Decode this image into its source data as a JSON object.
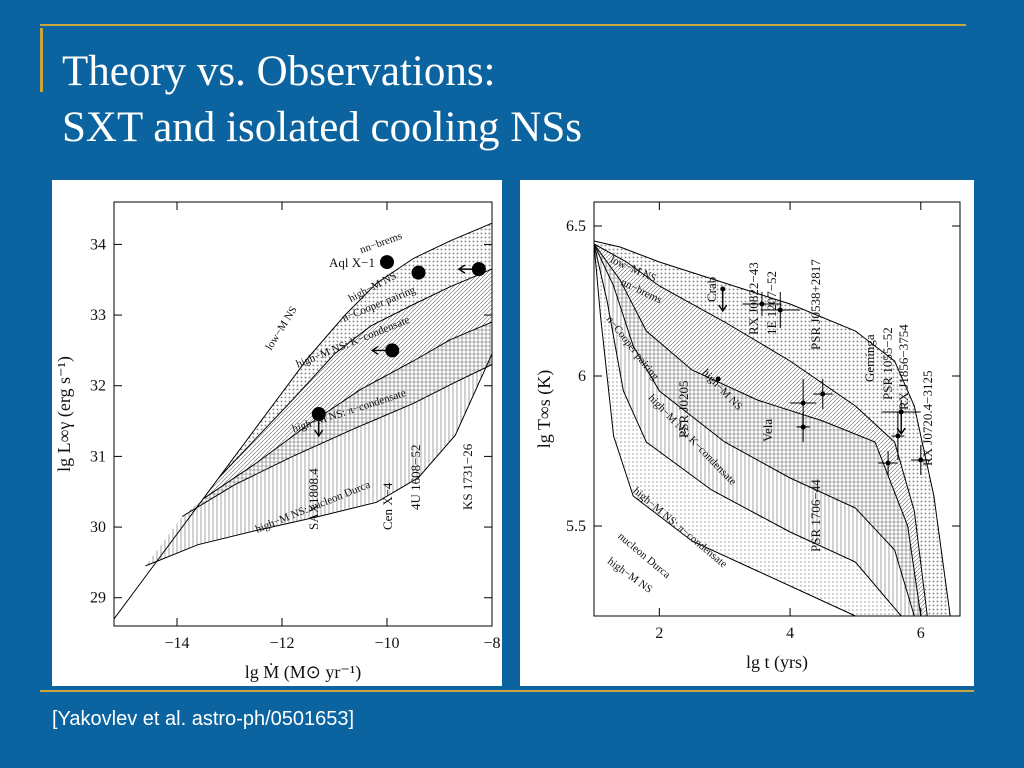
{
  "slide": {
    "title_line1": "Theory vs. Observations:",
    "title_line2": "SXT and isolated cooling NSs",
    "citation": "[Yakovlev et al. astro-ph/0501653]",
    "colors": {
      "background": "#0b64a0",
      "rule": "#c8a63c",
      "panel": "#ffffff"
    }
  },
  "chart_data": [
    {
      "type": "area",
      "xlabel": "lg Ṁ  (M⊙ yr⁻¹)",
      "ylabel": "lg L∞γ  (erg s⁻¹)",
      "xlim": [
        -15.2,
        -8
      ],
      "ylim": [
        28.6,
        34.6
      ],
      "xticks": [
        -14,
        -12,
        -10,
        -8
      ],
      "xtick_labels": [
        "−14",
        "−12",
        "−10",
        "−8"
      ],
      "yticks": [
        29,
        30,
        31,
        32,
        33,
        34
      ],
      "ytick_labels": [
        "29",
        "30",
        "31",
        "32",
        "33",
        "34"
      ],
      "curves": [
        {
          "name": "nn−brems",
          "points": [
            [
              -15.2,
              28.7
            ],
            [
              -14.5,
              29.4
            ],
            [
              -13.5,
              30.4
            ],
            [
              -12.5,
              31.4
            ],
            [
              -11.5,
              32.4
            ],
            [
              -10.8,
              33.0
            ],
            [
              -10.2,
              33.45
            ],
            [
              -9.5,
              33.8
            ],
            [
              -8.8,
              34.05
            ],
            [
              -8,
              34.3
            ]
          ]
        },
        {
          "name": "high−M NS: n−Cooper pairing",
          "points": [
            [
              -13.2,
              30.7
            ],
            [
              -12.5,
              31.25
            ],
            [
              -11.8,
              31.8
            ],
            [
              -11,
              32.45
            ],
            [
              -10.3,
              32.85
            ],
            [
              -9.5,
              33.15
            ],
            [
              -8.8,
              33.4
            ],
            [
              -8,
              33.65
            ]
          ]
        },
        {
          "name": "high−M NS: K−condensate",
          "points": [
            [
              -13.5,
              30.4
            ],
            [
              -12.5,
              30.9
            ],
            [
              -11.5,
              31.45
            ],
            [
              -10.5,
              31.95
            ],
            [
              -9.5,
              32.35
            ],
            [
              -8.8,
              32.65
            ],
            [
              -8,
              32.9
            ]
          ]
        },
        {
          "name": "high−M NS: π−condensate",
          "points": [
            [
              -13.9,
              30.15
            ],
            [
              -12.9,
              30.6
            ],
            [
              -11.8,
              31.0
            ],
            [
              -10.6,
              31.4
            ],
            [
              -9.5,
              31.75
            ],
            [
              -8.7,
              32.05
            ],
            [
              -8,
              32.3
            ]
          ]
        },
        {
          "name": "high−M NS: nucleon Durca",
          "points": [
            [
              -14.6,
              29.45
            ],
            [
              -13.6,
              29.75
            ],
            [
              -12.5,
              29.95
            ],
            [
              -11.3,
              30.15
            ],
            [
              -10.2,
              30.35
            ],
            [
              -9.4,
              30.7
            ],
            [
              -8.7,
              31.3
            ],
            [
              -8,
              32.45
            ]
          ]
        }
      ],
      "points": [
        {
          "label": "Aql X−1",
          "x": -10.0,
          "y": 33.75,
          "arrow": ""
        },
        {
          "label": "",
          "x": -9.4,
          "y": 33.6,
          "arrow": ""
        },
        {
          "label": "",
          "x": -8.25,
          "y": 33.65,
          "arrow": "left"
        },
        {
          "label": "",
          "x": -9.9,
          "y": 32.5,
          "arrow": "left"
        },
        {
          "label": "SAX1808.4",
          "x": -11.3,
          "y": 31.6,
          "arrow": "down"
        }
      ],
      "source_labels": [
        "SAX1808.4",
        "Cen X−4",
        "4U 1608−52",
        "KS 1731−26"
      ],
      "curve_labels": [
        "nn−brems",
        "low−M NS",
        "high−M NS",
        "n−Cooper pairing",
        "high−M NS: K−condensate",
        "high−M NS: π−condensate",
        "high−M NS: nucleon Durca"
      ]
    },
    {
      "type": "area",
      "xlabel": "lg t   (yrs)",
      "ylabel": "lg T∞s  (K)",
      "xlim": [
        1,
        6.6
      ],
      "ylim": [
        5.2,
        6.58
      ],
      "xticks": [
        2,
        4,
        6
      ],
      "xtick_labels": [
        "2",
        "4",
        "6"
      ],
      "yticks": [
        5.5,
        6,
        6.5
      ],
      "ytick_labels": [
        "5.5",
        "6",
        "6.5"
      ],
      "curves": [
        {
          "name": "low−M NS",
          "points": [
            [
              1,
              6.45
            ],
            [
              1.4,
              6.43
            ],
            [
              2,
              6.38
            ],
            [
              3,
              6.31
            ],
            [
              4,
              6.24
            ],
            [
              5,
              6.15
            ],
            [
              5.6,
              6.05
            ],
            [
              5.9,
              5.9
            ],
            [
              6.2,
              5.6
            ],
            [
              6.45,
              5.2
            ]
          ]
        },
        {
          "name": "nn−brems",
          "points": [
            [
              1,
              6.44
            ],
            [
              1.5,
              6.38
            ],
            [
              2,
              6.3
            ],
            [
              3,
              6.18
            ],
            [
              4,
              6.05
            ],
            [
              5,
              5.9
            ],
            [
              5.6,
              5.78
            ],
            [
              5.9,
              5.55
            ],
            [
              6.1,
              5.2
            ]
          ]
        },
        {
          "name": "n−Cooper pairing",
          "points": [
            [
              1,
              6.44
            ],
            [
              1.4,
              6.32
            ],
            [
              1.8,
              6.15
            ],
            [
              2.5,
              6.02
            ],
            [
              3.5,
              5.92
            ],
            [
              4.5,
              5.85
            ],
            [
              5.3,
              5.78
            ],
            [
              5.8,
              5.5
            ],
            [
              6.0,
              5.2
            ]
          ]
        },
        {
          "name": "high−M NS: K−condensate",
          "points": [
            [
              1,
              6.44
            ],
            [
              1.3,
              6.3
            ],
            [
              1.6,
              6.1
            ],
            [
              2,
              5.95
            ],
            [
              3,
              5.78
            ],
            [
              4,
              5.66
            ],
            [
              5,
              5.56
            ],
            [
              5.6,
              5.42
            ],
            [
              5.9,
              5.2
            ]
          ]
        },
        {
          "name": "high−M NS: π−condensate",
          "points": [
            [
              1,
              6.44
            ],
            [
              1.2,
              6.25
            ],
            [
              1.45,
              5.95
            ],
            [
              1.8,
              5.78
            ],
            [
              2.8,
              5.62
            ],
            [
              4,
              5.48
            ],
            [
              5,
              5.38
            ],
            [
              5.7,
              5.2
            ]
          ]
        },
        {
          "name": "high−M NS: nucleon Durca",
          "points": [
            [
              1,
              6.44
            ],
            [
              1.1,
              6.2
            ],
            [
              1.3,
              5.8
            ],
            [
              1.6,
              5.6
            ],
            [
              2.5,
              5.45
            ],
            [
              3.5,
              5.35
            ],
            [
              4.5,
              5.25
            ],
            [
              5,
              5.2
            ]
          ]
        }
      ],
      "points": [
        {
          "label": "Crab",
          "x": 2.97,
          "y": 6.29,
          "xerr": 0,
          "yerr": 0,
          "arrow": "down"
        },
        {
          "label": "RX J0822−43",
          "x": 3.57,
          "y": 6.24,
          "xerr": 0.3,
          "yerr": 0.04,
          "arrow": ""
        },
        {
          "label": "1E 1207−52",
          "x": 3.85,
          "y": 6.22,
          "xerr": 0.3,
          "yerr": 0.06,
          "arrow": ""
        },
        {
          "label": "PSR J0205",
          "x": 2.9,
          "y": 5.99,
          "xerr": 0,
          "yerr": 0,
          "arrow": ""
        },
        {
          "label": "Vela",
          "x": 4.2,
          "y": 5.83,
          "xerr": 0.1,
          "yerr": 0.05,
          "arrow": ""
        },
        {
          "label": "PSR 1706−44",
          "x": 4.2,
          "y": 5.91,
          "xerr": 0.2,
          "yerr": 0.08,
          "arrow": ""
        },
        {
          "label": "PSR J0538+2817",
          "x": 4.5,
          "y": 5.94,
          "xerr": 0.15,
          "yerr": 0.05,
          "arrow": ""
        },
        {
          "label": "Geminga",
          "x": 5.5,
          "y": 5.71,
          "xerr": 0.15,
          "yerr": 0.04,
          "arrow": ""
        },
        {
          "label": "PSR 1055−52",
          "x": 5.7,
          "y": 5.88,
          "xerr": 0.3,
          "yerr": 0.04,
          "arrow": "down"
        },
        {
          "label": "RX J1856−3754",
          "x": 5.65,
          "y": 5.8,
          "xerr": 0.1,
          "yerr": 0.08,
          "arrow": ""
        },
        {
          "label": "RX J0720.4−3125",
          "x": 6.0,
          "y": 5.72,
          "xerr": 0.15,
          "yerr": 0.05,
          "arrow": ""
        }
      ],
      "source_labels": [
        "Crab",
        "RX J0822−43",
        "1E 1207−52",
        "PSR J0538+2817",
        "Geminga",
        "PSR 1055−52",
        "RX J1856−3754",
        "RX J0720.4−3125",
        "PSR J0205",
        "Vela",
        "PSR 1706−44"
      ],
      "curve_labels": [
        "low−M NS",
        "nn−brems",
        "n−Cooper pairing",
        "high−M NS",
        "high−M NS: K−condensate",
        "high−M NS: π−condensate",
        "nucleon Durca",
        "high−M NS"
      ]
    }
  ]
}
